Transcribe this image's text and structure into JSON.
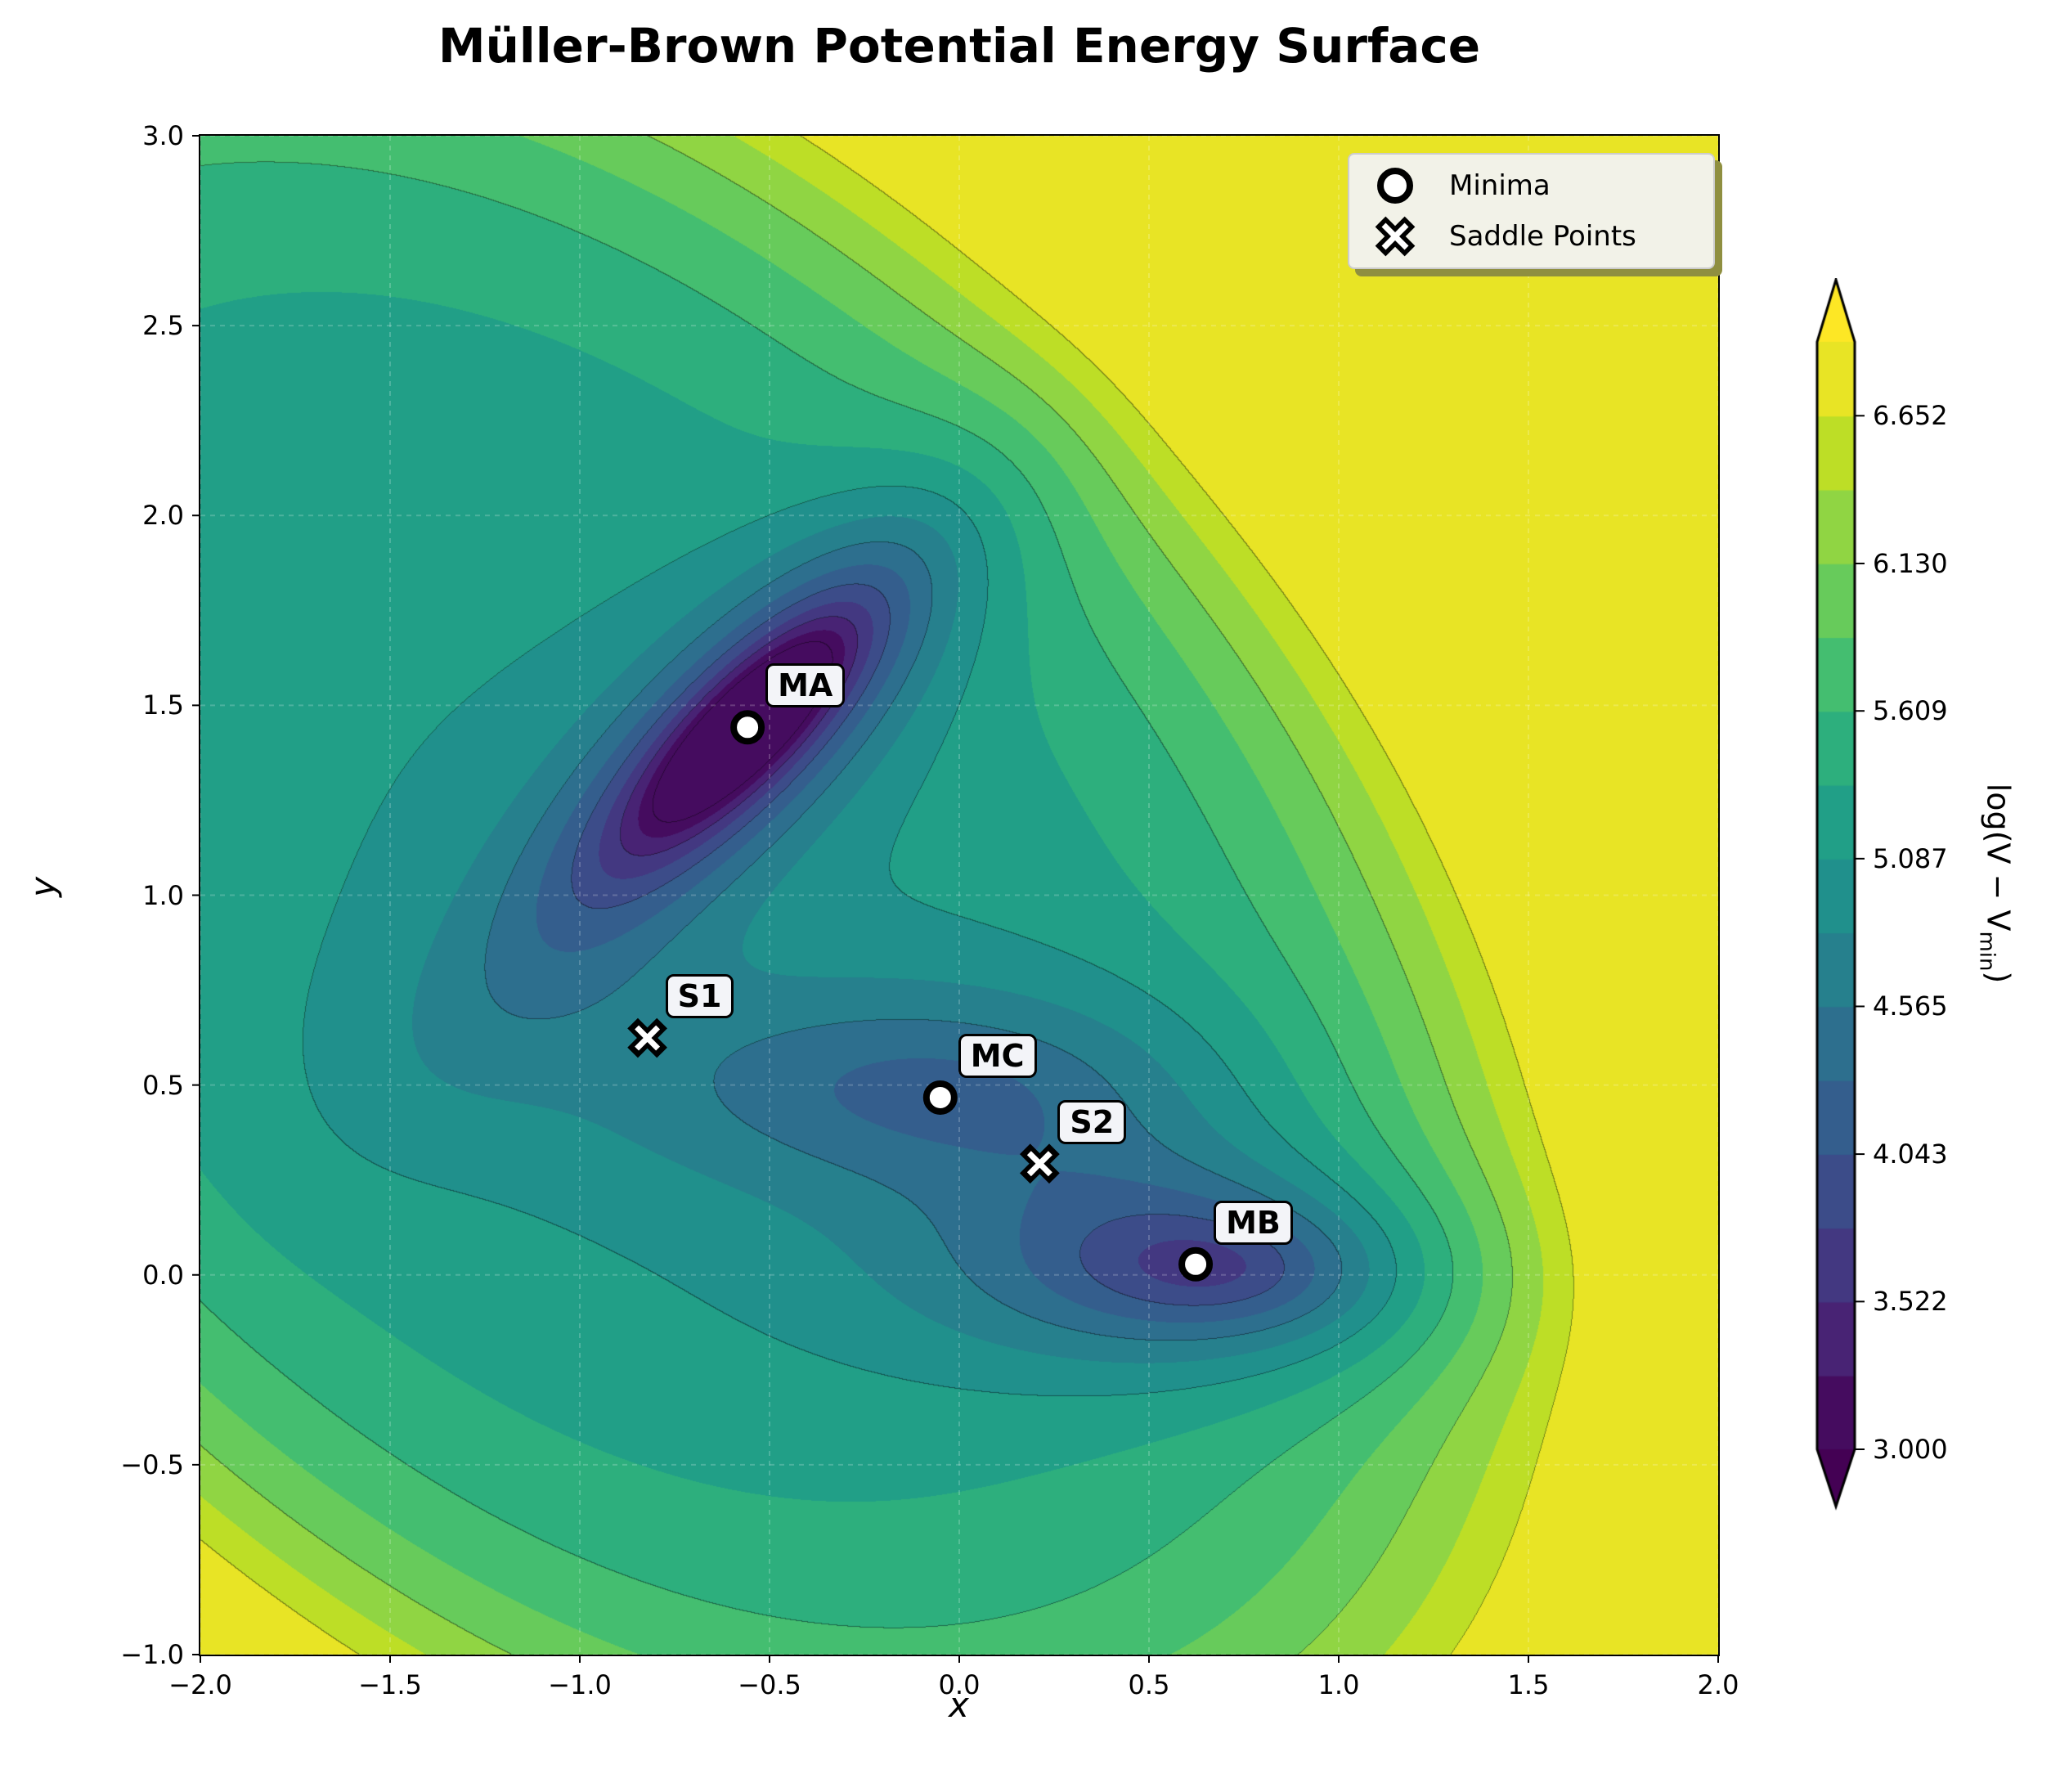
{
  "chart_data": {
    "type": "contourf",
    "title": "Müller-Brown Potential Energy Surface",
    "xlabel": "x",
    "ylabel": "y",
    "xlim": [
      -2.0,
      2.0
    ],
    "ylim": [
      -1.0,
      3.0
    ],
    "xticks": [
      "−2.0",
      "−1.5",
      "−1.0",
      "−0.5",
      "0.0",
      "0.5",
      "1.0",
      "1.5",
      "2.0"
    ],
    "xtick_values": [
      -2.0,
      -1.5,
      -1.0,
      -0.5,
      0.0,
      0.5,
      1.0,
      1.5,
      2.0
    ],
    "yticks": [
      "−1.0",
      "−0.5",
      "0.0",
      "0.5",
      "1.0",
      "1.5",
      "2.0",
      "2.5",
      "3.0"
    ],
    "ytick_values": [
      -1.0,
      -0.5,
      0.0,
      0.5,
      1.0,
      1.5,
      2.0,
      2.5,
      3.0
    ],
    "grid": true,
    "colormap": "viridis",
    "colorbar": {
      "label": "log(V − V",
      "label_sub": "min",
      "label_end": ")",
      "ticks": [
        "3.000",
        "3.522",
        "4.043",
        "4.565",
        "5.087",
        "5.609",
        "6.130",
        "6.652"
      ],
      "tick_values": [
        3.0,
        3.522,
        4.043,
        4.565,
        5.087,
        5.609,
        6.13,
        6.652
      ],
      "range": [
        3.0,
        6.913
      ],
      "extend": "both"
    },
    "legend": {
      "placement": "top-right",
      "entries": [
        {
          "label": "Minima",
          "marker": "circle"
        },
        {
          "label": "Saddle Points",
          "marker": "X"
        }
      ]
    },
    "points": [
      {
        "label": "MA",
        "x": -0.558,
        "y": 1.442,
        "kind": "minimum"
      },
      {
        "label": "MB",
        "x": 0.623,
        "y": 0.028,
        "kind": "minimum"
      },
      {
        "label": "MC",
        "x": -0.05,
        "y": 0.467,
        "kind": "minimum"
      },
      {
        "label": "S1",
        "x": -0.822,
        "y": 0.624,
        "kind": "saddle"
      },
      {
        "label": "S2",
        "x": 0.212,
        "y": 0.293,
        "kind": "saddle"
      }
    ]
  }
}
